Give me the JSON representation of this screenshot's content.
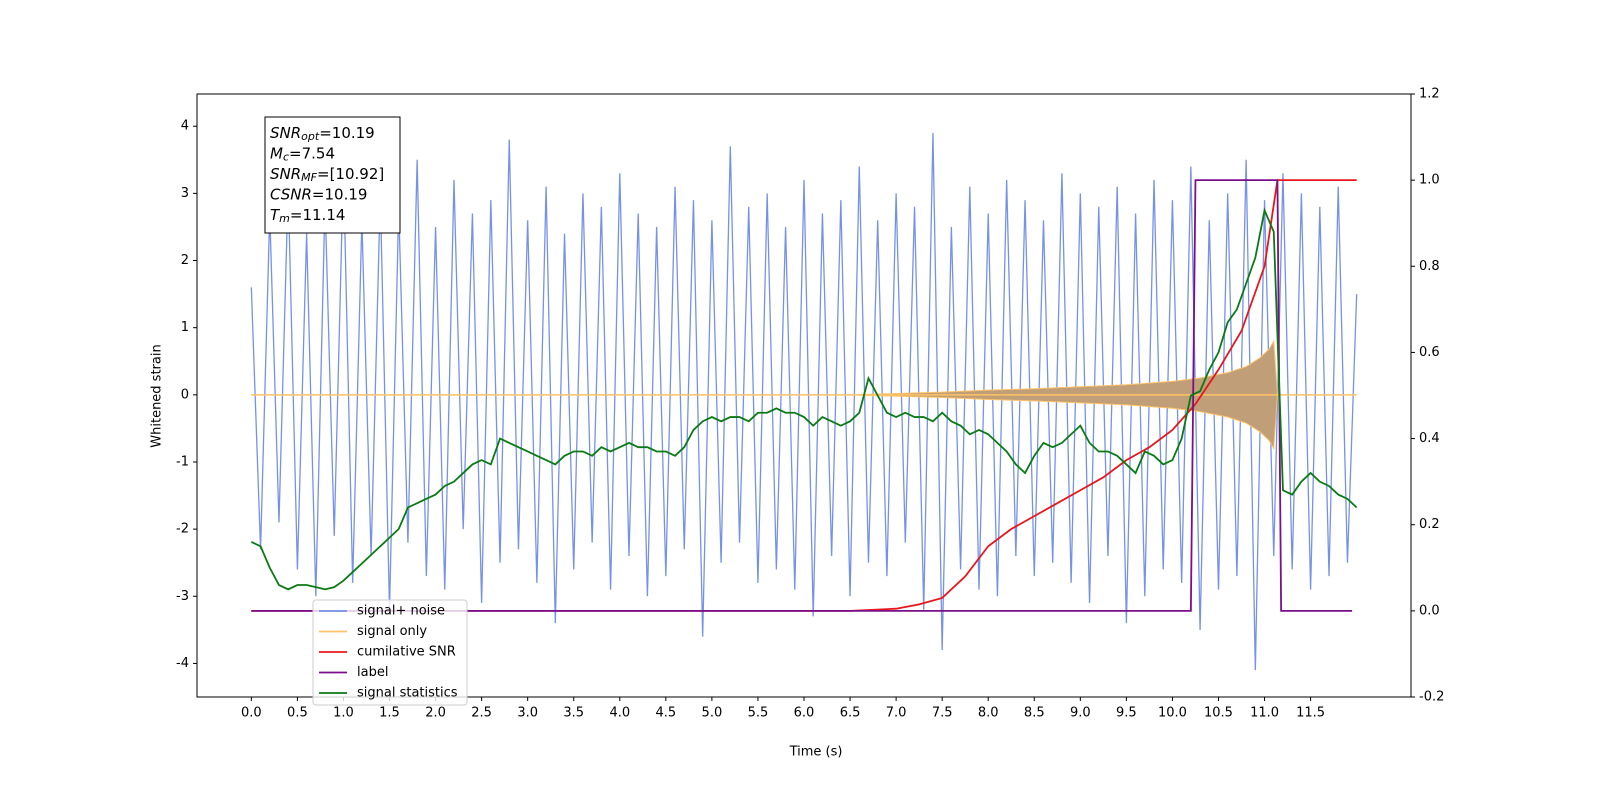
{
  "chart_data": {
    "type": "line",
    "xlabel": "Time (s)",
    "ylabel": "Whitened strain",
    "xlim": [
      -0.59,
      12.59
    ],
    "ylim": [
      -4.5,
      4.48
    ],
    "y2lim": [
      -0.2,
      1.2
    ],
    "xticks": [
      {
        "value": 0,
        "label": "0.0"
      },
      0.5,
      {
        "value": 1,
        "label": "1.0"
      },
      1.5,
      {
        "value": 2,
        "label": "2.0"
      },
      2.5,
      {
        "value": 3,
        "label": "3.0"
      },
      3.5,
      {
        "value": 4,
        "label": "4.0"
      },
      4.5,
      {
        "value": 5,
        "label": "5.0"
      },
      5.5,
      {
        "value": 6,
        "label": "6.0"
      },
      6.5,
      {
        "value": 7,
        "label": "7.0"
      },
      7.5,
      {
        "value": 8,
        "label": "8.0"
      },
      8.5,
      {
        "value": 9,
        "label": "9.0"
      },
      9.5,
      {
        "value": 10,
        "label": "10.0"
      },
      10.5,
      {
        "value": 11,
        "label": "11.0"
      },
      11.5
    ],
    "yticks": [
      -4,
      -3,
      -2,
      -1,
      0,
      1,
      2,
      3,
      4
    ],
    "y2ticks": [
      -0.2,
      {
        "value": 0,
        "label": "0.0"
      },
      0.2,
      0.4,
      0.6,
      0.8,
      {
        "value": 1,
        "label": "1.0"
      },
      1.2
    ],
    "legend": "lower left",
    "annotations": [
      {
        "base": "SNR",
        "sub": "opt",
        "text": "=10.19"
      },
      {
        "base": "M",
        "sub": "c",
        "text": "=7.54"
      },
      {
        "base": "SNR",
        "sub": "MF",
        "text": "=[10.92]"
      },
      {
        "base": "CSNR",
        "sub": "",
        "text": "=10.19"
      },
      {
        "base": "T",
        "sub": "m",
        "text": "=11.14"
      }
    ],
    "x": [
      0,
      0.1,
      0.2,
      0.3,
      0.4,
      0.5,
      0.6,
      0.7,
      0.8,
      0.9,
      1,
      1.1,
      1.2,
      1.3,
      1.4,
      1.5,
      1.6,
      1.7,
      1.8,
      1.9,
      2,
      2.1,
      2.2,
      2.3,
      2.4,
      2.5,
      2.6,
      2.7,
      2.8,
      2.9,
      3,
      3.1,
      3.2,
      3.3,
      3.4,
      3.5,
      3.6,
      3.7,
      3.8,
      3.9,
      4,
      4.1,
      4.2,
      4.3,
      4.4,
      4.5,
      4.6,
      4.7,
      4.8,
      4.9,
      5,
      5.1,
      5.2,
      5.3,
      5.4,
      5.5,
      5.6,
      5.7,
      5.8,
      5.9,
      6,
      6.1,
      6.2,
      6.3,
      6.4,
      6.5,
      6.6,
      6.7,
      6.8,
      6.9,
      7,
      7.1,
      7.2,
      7.3,
      7.4,
      7.5,
      7.6,
      7.7,
      7.8,
      7.9,
      8,
      8.1,
      8.2,
      8.3,
      8.4,
      8.5,
      8.6,
      8.7,
      8.8,
      8.9,
      9,
      9.1,
      9.2,
      9.3,
      9.4,
      9.5,
      9.6,
      9.7,
      9.8,
      9.9,
      10,
      10.1,
      10.2,
      10.3,
      10.4,
      10.5,
      10.6,
      10.7,
      10.8,
      10.9,
      11,
      11.1,
      11.2,
      11.3,
      11.4,
      11.5,
      11.6,
      11.7,
      11.8,
      11.9,
      12
    ],
    "series": [
      {
        "name": "signal+ noise",
        "color": "#7592e6",
        "style": "line",
        "values": [
          1.6,
          -2.3,
          2.7,
          -1.9,
          3.1,
          -2.6,
          2.4,
          -3.0,
          2.9,
          -2.1,
          3.4,
          -2.8,
          2.6,
          -2.4,
          3.0,
          -3.2,
          2.8,
          -2.2,
          3.5,
          -2.7,
          2.5,
          -2.9,
          3.2,
          -2.0,
          2.7,
          -3.1,
          2.9,
          -2.5,
          3.8,
          -2.3,
          2.6,
          -2.8,
          3.1,
          -3.4,
          2.4,
          -2.6,
          3.0,
          -2.2,
          2.8,
          -2.9,
          3.3,
          -2.4,
          2.7,
          -3.0,
          2.5,
          -2.7,
          3.1,
          -2.3,
          2.9,
          -3.6,
          2.6,
          -2.5,
          3.7,
          -2.2,
          2.8,
          -2.8,
          3.0,
          -2.6,
          2.5,
          -2.9,
          3.2,
          -3.3,
          2.7,
          -2.4,
          2.9,
          -3.0,
          3.4,
          -2.5,
          2.6,
          -2.7,
          3.0,
          -2.2,
          2.8,
          -3.2,
          3.9,
          -3.8,
          2.5,
          -2.6,
          3.1,
          -2.9,
          2.7,
          -3.0,
          3.2,
          -2.4,
          2.9,
          -2.7,
          2.6,
          -2.5,
          3.3,
          -2.8,
          3.0,
          -3.1,
          2.8,
          -2.4,
          3.1,
          -3.4,
          2.7,
          -3.0,
          3.2,
          -2.6,
          2.9,
          -2.8,
          3.4,
          -3.5,
          2.6,
          -2.9,
          3.0,
          -2.7,
          3.5,
          -4.1,
          2.9,
          -2.4,
          3.3,
          -2.6,
          3.0,
          -2.9,
          2.8,
          -2.7,
          3.1,
          -2.5,
          1.5
        ]
      },
      {
        "name": "signal only",
        "color": "#ffc266",
        "fill": "#bf9e78",
        "style": "envelope",
        "x": [
          0,
          6.5,
          7,
          7.5,
          8,
          8.5,
          9,
          9.5,
          10,
          10.3,
          10.6,
          10.8,
          10.95,
          11.05,
          11.1,
          11.14,
          11.2,
          12
        ],
        "values": [
          0,
          0,
          0.02,
          0.04,
          0.07,
          0.09,
          0.12,
          0.15,
          0.2,
          0.25,
          0.33,
          0.42,
          0.55,
          0.68,
          0.8,
          0,
          0,
          0
        ]
      },
      {
        "name": "cumilative SNR",
        "color": "#e8161b",
        "style": "line",
        "axis": "y2",
        "x": [
          0,
          6.5,
          7,
          7.25,
          7.5,
          7.75,
          8,
          8.25,
          8.5,
          8.75,
          9,
          9.25,
          9.5,
          9.75,
          10,
          10.25,
          10.5,
          10.75,
          11,
          11.14,
          12
        ],
        "values": [
          0,
          0,
          0.005,
          0.015,
          0.03,
          0.08,
          0.15,
          0.19,
          0.22,
          0.25,
          0.28,
          0.31,
          0.35,
          0.38,
          0.42,
          0.48,
          0.56,
          0.65,
          0.8,
          1.0,
          1.0
        ]
      },
      {
        "name": "label",
        "color": "#7a0f8c",
        "style": "line",
        "axis": "y2",
        "x": [
          0,
          10.2,
          10.25,
          11.14,
          11.18,
          11.95
        ],
        "values": [
          0,
          0,
          1,
          1,
          0,
          0
        ]
      },
      {
        "name": "signal statistics",
        "color": "#0a7a12",
        "style": "line",
        "axis": "y2",
        "values": [
          0.16,
          0.15,
          0.1,
          0.06,
          0.05,
          0.06,
          0.06,
          0.055,
          0.05,
          0.055,
          0.07,
          0.09,
          0.11,
          0.13,
          0.15,
          0.17,
          0.19,
          0.24,
          0.25,
          0.26,
          0.27,
          0.29,
          0.3,
          0.32,
          0.34,
          0.35,
          0.34,
          0.4,
          0.39,
          0.38,
          0.37,
          0.36,
          0.35,
          0.34,
          0.36,
          0.37,
          0.37,
          0.36,
          0.38,
          0.37,
          0.38,
          0.39,
          0.38,
          0.38,
          0.37,
          0.37,
          0.36,
          0.38,
          0.42,
          0.44,
          0.45,
          0.44,
          0.45,
          0.45,
          0.44,
          0.46,
          0.46,
          0.47,
          0.46,
          0.46,
          0.45,
          0.43,
          0.45,
          0.44,
          0.43,
          0.44,
          0.46,
          0.54,
          0.5,
          0.46,
          0.45,
          0.46,
          0.45,
          0.45,
          0.44,
          0.46,
          0.44,
          0.43,
          0.41,
          0.42,
          0.41,
          0.39,
          0.37,
          0.34,
          0.32,
          0.36,
          0.39,
          0.38,
          0.39,
          0.41,
          0.43,
          0.39,
          0.37,
          0.37,
          0.36,
          0.34,
          0.32,
          0.37,
          0.36,
          0.34,
          0.35,
          0.4,
          0.5,
          0.51,
          0.56,
          0.6,
          0.67,
          0.7,
          0.76,
          0.82,
          0.93,
          0.88,
          0.28,
          0.27,
          0.3,
          0.32,
          0.3,
          0.29,
          0.27,
          0.26,
          0.24
        ]
      }
    ]
  }
}
